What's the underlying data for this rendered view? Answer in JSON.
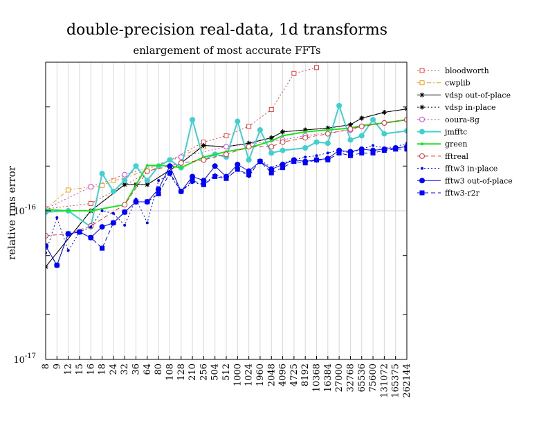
{
  "chart_data": {
    "type": "line",
    "title": "double-precision real-data, 1d transforms",
    "subtitle": "enlargement of most accurate FFTs",
    "ylabel": "relative rms error",
    "xlabel": "",
    "yscale": "log",
    "ylim": [
      1e-17,
      1e-15
    ],
    "yticks": [
      {
        "value": 1e-16,
        "base": "10",
        "exp": "-16"
      },
      {
        "value": 1e-17,
        "base": "10",
        "exp": "-17"
      }
    ],
    "grid": "x",
    "legend_position": "right",
    "categories": [
      "8",
      "9",
      "12",
      "15",
      "16",
      "18",
      "24",
      "32",
      "36",
      "64",
      "80",
      "108",
      "128",
      "210",
      "256",
      "504",
      "512",
      "1000",
      "1024",
      "1960",
      "2048",
      "4096",
      "4725",
      "8192",
      "10368",
      "16384",
      "27000",
      "32768",
      "65536",
      "75600",
      "131072",
      "165375",
      "262144"
    ],
    "series": [
      {
        "name": "bloodworth",
        "color": "#e84040",
        "dash": "2,3",
        "marker": "square-open",
        "values": [
          1.03e-16,
          null,
          null,
          null,
          1.12e-16,
          null,
          null,
          null,
          null,
          null,
          null,
          null,
          null,
          null,
          2.9e-16,
          null,
          3.2e-16,
          null,
          3.7e-16,
          null,
          4.8e-16,
          null,
          8.4e-16,
          null,
          9.2e-16,
          null,
          null,
          null,
          null,
          null,
          null,
          null,
          null
        ]
      },
      {
        "name": "cwplib",
        "color": "#f0a020",
        "dash": "6,3,2,3",
        "marker": "square-open",
        "values": [
          1.03e-16,
          null,
          1.38e-16,
          null,
          1.45e-16,
          1.48e-16,
          1.6e-16,
          1.65e-16,
          null,
          null,
          null,
          null,
          null,
          null,
          2.7e-16,
          null,
          null,
          null,
          null,
          null,
          null,
          null,
          null,
          null,
          null,
          null,
          null,
          null,
          null,
          null,
          null,
          null,
          null
        ]
      },
      {
        "name": "vdsp out-of-place",
        "color": "#000000",
        "dash": "",
        "marker": "asterisk",
        "values": [
          4.2e-17,
          null,
          null,
          null,
          1e-16,
          null,
          null,
          1.5e-16,
          1.5e-16,
          1.5e-16,
          null,
          null,
          2.1e-16,
          null,
          2.75e-16,
          null,
          2.7e-16,
          null,
          2.85e-16,
          null,
          3.1e-16,
          3.4e-16,
          null,
          3.5e-16,
          null,
          3.6e-16,
          null,
          3.8e-16,
          4.2e-16,
          null,
          4.6e-16,
          null,
          4.85e-16
        ]
      },
      {
        "name": "vdsp in-place",
        "color": "#000000",
        "dash": "2,3",
        "marker": "asterisk",
        "values": [
          4.2e-17,
          null,
          null,
          null,
          1e-16,
          null,
          null,
          1.5e-16,
          1.5e-16,
          1.5e-16,
          null,
          null,
          2.1e-16,
          null,
          2.75e-16,
          null,
          2.7e-16,
          null,
          2.85e-16,
          null,
          3.1e-16,
          3.4e-16,
          null,
          3.5e-16,
          null,
          3.6e-16,
          null,
          3.8e-16,
          4.2e-16,
          null,
          4.6e-16,
          null,
          4.85e-16
        ]
      },
      {
        "name": "ooura-8g",
        "color": "#e040e0",
        "dash": "2,3",
        "marker": "circle-open",
        "values": [
          1.03e-16,
          null,
          null,
          null,
          1.45e-16,
          null,
          null,
          1.75e-16,
          null,
          null,
          null,
          null,
          2.3e-16,
          null,
          null,
          null,
          2.7e-16,
          null,
          null,
          null,
          null,
          3e-16,
          null,
          3.2e-16,
          null,
          null,
          null,
          3.5e-16,
          3.7e-16,
          null,
          3.9e-16,
          null,
          4.1e-16
        ]
      },
      {
        "name": "jmfftc",
        "color": "#40d0d0",
        "dash": "",
        "marker": "circle-filled",
        "values": [
          9.8e-17,
          null,
          1e-16,
          null,
          7.8e-17,
          1.78e-16,
          1.35e-16,
          1.6e-16,
          2e-16,
          1.6e-16,
          2e-16,
          2.2e-16,
          1.95e-16,
          4.1e-16,
          2.2e-16,
          2.4e-16,
          2.3e-16,
          4e-16,
          2.2e-16,
          3.5e-16,
          2.45e-16,
          2.55e-16,
          null,
          2.65e-16,
          2.9e-16,
          2.85e-16,
          5.1e-16,
          3e-16,
          3.2e-16,
          4.1e-16,
          3.3e-16,
          null,
          3.45e-16
        ]
      },
      {
        "name": "green",
        "color": "#20e020",
        "dash": "",
        "marker": "dot",
        "values": [
          1.02e-16,
          null,
          1e-16,
          null,
          1e-16,
          null,
          null,
          1.1e-16,
          null,
          2.02e-16,
          2.02e-16,
          2e-16,
          1.95e-16,
          null,
          2.3e-16,
          null,
          2.5e-16,
          null,
          2.65e-16,
          null,
          2.95e-16,
          3.2e-16,
          null,
          3.4e-16,
          null,
          3.5e-16,
          null,
          3.6e-16,
          3.75e-16,
          null,
          3.9e-16,
          null,
          4.1e-16
        ]
      },
      {
        "name": "fftreal",
        "color": "#e03030",
        "dash": "6,4",
        "marker": "circle-open",
        "values": [
          6.8e-17,
          null,
          7e-17,
          null,
          7.9e-17,
          null,
          null,
          1.1e-16,
          null,
          1.85e-16,
          null,
          2e-16,
          2.1e-16,
          null,
          2.2e-16,
          null,
          2.4e-16,
          null,
          2.7e-16,
          null,
          2.7e-16,
          2.9e-16,
          null,
          3.1e-16,
          null,
          3.3e-16,
          null,
          3.55e-16,
          3.7e-16,
          null,
          3.9e-16,
          null,
          4.1e-16
        ]
      },
      {
        "name": "fftw3 in-place",
        "color": "#0000ff",
        "dash": "2,3",
        "marker": "dot-small",
        "values": [
          5.2e-17,
          9e-17,
          5.4e-17,
          7.2e-17,
          7.8e-17,
          1e-16,
          9.6e-17,
          8e-17,
          1.2e-16,
          8.3e-17,
          1.6e-16,
          1.75e-16,
          1.35e-16,
          1.55e-16,
          1.5e-16,
          1.75e-16,
          1.65e-16,
          1.9e-16,
          1.7e-16,
          2.2e-16,
          1.95e-16,
          2.1e-16,
          2.2e-16,
          2.3e-16,
          2.35e-16,
          2.45e-16,
          2.55e-16,
          2.45e-16,
          2.6e-16,
          2.75e-16,
          2.65e-16,
          2.7e-16,
          2.85e-16
        ]
      },
      {
        "name": "fftw3 out-of-place",
        "color": "#0000ff",
        "dash": "",
        "marker": "circle-filled-blue",
        "values": [
          5.8e-17,
          4.3e-17,
          7e-17,
          7.2e-17,
          6.6e-17,
          7.8e-17,
          8.3e-17,
          9.8e-17,
          1.15e-16,
          1.15e-16,
          1.4e-16,
          2e-16,
          1.35e-16,
          1.7e-16,
          1.6e-16,
          2e-16,
          1.7e-16,
          2.05e-16,
          1.85e-16,
          2.15e-16,
          1.9e-16,
          2.05e-16,
          2.2e-16,
          2.15e-16,
          2.2e-16,
          2.25e-16,
          2.55e-16,
          2.5e-16,
          2.6e-16,
          2.55e-16,
          2.6e-16,
          2.65e-16,
          2.7e-16
        ]
      },
      {
        "name": "fftw3-r2r",
        "color": "#0000ff",
        "dash": "6,4",
        "marker": "square-filled",
        "values": [
          5.8e-17,
          4.3e-17,
          7e-17,
          7.2e-17,
          6.6e-17,
          5.6e-17,
          8.3e-17,
          9.8e-17,
          1.15e-16,
          1.15e-16,
          1.3e-16,
          1.8e-16,
          1.35e-16,
          1.6e-16,
          1.5e-16,
          1.7e-16,
          1.65e-16,
          1.9e-16,
          1.75e-16,
          2.15e-16,
          1.8e-16,
          1.95e-16,
          2.15e-16,
          2.1e-16,
          2.2e-16,
          2.2e-16,
          2.45e-16,
          2.35e-16,
          2.45e-16,
          2.45e-16,
          2.55e-16,
          2.6e-16,
          2.6e-16
        ]
      }
    ]
  }
}
